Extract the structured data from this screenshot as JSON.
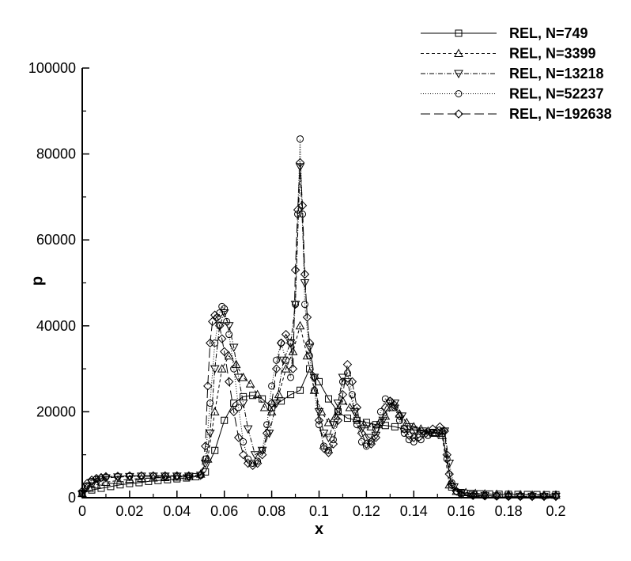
{
  "chart_data": {
    "type": "line",
    "xlabel": "x",
    "ylabel": "p",
    "xlim": [
      0,
      0.2
    ],
    "ylim": [
      0,
      100000
    ],
    "xticks": [
      "0",
      "0.02",
      "0.04",
      "0.06",
      "0.08",
      "0.1",
      "0.12",
      "0.14",
      "0.16",
      "0.18",
      "0.2"
    ],
    "yticks": [
      "0",
      "20000",
      "40000",
      "60000",
      "80000",
      "100000"
    ],
    "grid": false,
    "legend_position": "top-right",
    "series": [
      {
        "name": "REL, N=749",
        "marker": "square",
        "dash": "solid",
        "x": [
          0.0,
          0.004,
          0.008,
          0.012,
          0.016,
          0.02,
          0.024,
          0.028,
          0.032,
          0.036,
          0.04,
          0.044,
          0.048,
          0.052,
          0.056,
          0.06,
          0.064,
          0.068,
          0.072,
          0.076,
          0.08,
          0.084,
          0.088,
          0.092,
          0.096,
          0.1,
          0.104,
          0.108,
          0.112,
          0.116,
          0.12,
          0.124,
          0.128,
          0.132,
          0.136,
          0.14,
          0.144,
          0.148,
          0.152,
          0.156,
          0.16,
          0.164,
          0.168,
          0.172,
          0.176,
          0.18,
          0.184,
          0.188,
          0.192,
          0.196,
          0.2
        ],
        "y": [
          1000,
          1800,
          2200,
          2600,
          3000,
          3300,
          3500,
          3800,
          4000,
          4200,
          4400,
          4600,
          4900,
          6000,
          11000,
          18000,
          22000,
          23500,
          23800,
          23000,
          21000,
          22500,
          24000,
          25000,
          30000,
          27000,
          23000,
          20000,
          18500,
          18000,
          17500,
          17000,
          16800,
          16500,
          16000,
          15800,
          15500,
          15200,
          15000,
          2500,
          1200,
          1000,
          900,
          850,
          800,
          780,
          760,
          740,
          720,
          700,
          700
        ]
      },
      {
        "name": "REL, N=3399",
        "marker": "triangle-up",
        "dash": "dashed",
        "x": [
          0.0,
          0.003,
          0.006,
          0.01,
          0.015,
          0.02,
          0.025,
          0.03,
          0.035,
          0.04,
          0.045,
          0.05,
          0.053,
          0.056,
          0.059,
          0.062,
          0.065,
          0.068,
          0.071,
          0.074,
          0.077,
          0.08,
          0.083,
          0.086,
          0.089,
          0.092,
          0.095,
          0.098,
          0.101,
          0.104,
          0.107,
          0.11,
          0.113,
          0.116,
          0.119,
          0.122,
          0.125,
          0.128,
          0.131,
          0.134,
          0.137,
          0.14,
          0.143,
          0.146,
          0.149,
          0.152,
          0.155,
          0.158,
          0.162,
          0.166,
          0.17,
          0.175,
          0.18,
          0.185,
          0.19,
          0.195,
          0.2
        ],
        "y": [
          1000,
          2200,
          3000,
          3600,
          4000,
          4300,
          4500,
          4600,
          4700,
          4800,
          4900,
          5500,
          9000,
          20000,
          30000,
          33000,
          31000,
          28000,
          26500,
          24000,
          21000,
          20000,
          24000,
          30000,
          34000,
          40000,
          33000,
          25000,
          20000,
          17500,
          19000,
          22500,
          21000,
          18500,
          17000,
          16500,
          17000,
          19000,
          21000,
          19500,
          17500,
          16500,
          16000,
          15500,
          15000,
          14500,
          3000,
          1500,
          1200,
          1000,
          900,
          800,
          750,
          700,
          650,
          600,
          600
        ]
      },
      {
        "name": "REL, N=13218",
        "marker": "triangle-down",
        "dash": "dashdot",
        "x": [
          0.0,
          0.002,
          0.004,
          0.007,
          0.01,
          0.015,
          0.02,
          0.025,
          0.03,
          0.035,
          0.04,
          0.045,
          0.05,
          0.052,
          0.054,
          0.056,
          0.058,
          0.06,
          0.062,
          0.064,
          0.066,
          0.068,
          0.07,
          0.073,
          0.076,
          0.079,
          0.082,
          0.085,
          0.088,
          0.09,
          0.092,
          0.094,
          0.096,
          0.098,
          0.1,
          0.102,
          0.104,
          0.106,
          0.108,
          0.11,
          0.112,
          0.115,
          0.118,
          0.121,
          0.124,
          0.127,
          0.13,
          0.132,
          0.135,
          0.138,
          0.141,
          0.144,
          0.147,
          0.15,
          0.153,
          0.155,
          0.157,
          0.16,
          0.165,
          0.17,
          0.175,
          0.18,
          0.185,
          0.19,
          0.195,
          0.2
        ],
        "y": [
          800,
          2500,
          3500,
          4200,
          4600,
          4800,
          4900,
          5000,
          5000,
          5000,
          5000,
          5000,
          5200,
          8000,
          15000,
          30000,
          40000,
          43000,
          40000,
          35000,
          28000,
          22000,
          16000,
          10000,
          11000,
          15000,
          22000,
          32000,
          36000,
          45000,
          77000,
          50000,
          35000,
          28000,
          20000,
          15000,
          14000,
          17000,
          22000,
          28000,
          27000,
          20000,
          16000,
          14000,
          14500,
          18000,
          22000,
          22000,
          19000,
          16500,
          15500,
          15000,
          15000,
          15000,
          15500,
          8000,
          2500,
          1000,
          700,
          500,
          400,
          350,
          300,
          300,
          300,
          300
        ]
      },
      {
        "name": "REL, N=52237",
        "marker": "circle",
        "dash": "dotted",
        "x": [
          0.0,
          0.002,
          0.004,
          0.006,
          0.008,
          0.01,
          0.015,
          0.02,
          0.025,
          0.03,
          0.035,
          0.04,
          0.045,
          0.05,
          0.052,
          0.054,
          0.056,
          0.058,
          0.059,
          0.06,
          0.061,
          0.062,
          0.064,
          0.066,
          0.068,
          0.07,
          0.072,
          0.074,
          0.076,
          0.078,
          0.08,
          0.082,
          0.084,
          0.086,
          0.088,
          0.09,
          0.091,
          0.092,
          0.093,
          0.094,
          0.096,
          0.098,
          0.1,
          0.102,
          0.104,
          0.106,
          0.108,
          0.11,
          0.112,
          0.114,
          0.116,
          0.118,
          0.12,
          0.122,
          0.124,
          0.126,
          0.128,
          0.13,
          0.132,
          0.134,
          0.136,
          0.138,
          0.14,
          0.143,
          0.146,
          0.149,
          0.152,
          0.154,
          0.156,
          0.158,
          0.16,
          0.165,
          0.17,
          0.175,
          0.18,
          0.185,
          0.19,
          0.195,
          0.2
        ],
        "y": [
          1000,
          2800,
          3800,
          4300,
          4600,
          4800,
          4900,
          5000,
          5000,
          5000,
          5000,
          5000,
          5000,
          5200,
          9000,
          22000,
          36000,
          43000,
          44500,
          44000,
          41000,
          38000,
          30000,
          21000,
          13000,
          9000,
          8000,
          8500,
          11000,
          17000,
          26000,
          32000,
          36000,
          32000,
          28000,
          45000,
          66000,
          83500,
          66000,
          45000,
          33000,
          25000,
          17000,
          12000,
          11000,
          13500,
          20000,
          27000,
          29000,
          24000,
          17000,
          13000,
          12000,
          13000,
          16000,
          20000,
          23000,
          22500,
          21000,
          18000,
          15000,
          13500,
          13000,
          13500,
          14500,
          15000,
          15500,
          9000,
          3500,
          1500,
          800,
          500,
          400,
          350,
          300,
          300,
          300,
          300,
          300
        ]
      },
      {
        "name": "REL, N=192638",
        "marker": "diamond",
        "dash": "longdash",
        "x": [
          0.0,
          0.002,
          0.004,
          0.006,
          0.008,
          0.01,
          0.015,
          0.02,
          0.025,
          0.03,
          0.035,
          0.04,
          0.045,
          0.05,
          0.052,
          0.053,
          0.054,
          0.055,
          0.056,
          0.057,
          0.058,
          0.059,
          0.06,
          0.062,
          0.064,
          0.066,
          0.068,
          0.07,
          0.072,
          0.074,
          0.076,
          0.078,
          0.08,
          0.082,
          0.084,
          0.086,
          0.088,
          0.089,
          0.09,
          0.091,
          0.092,
          0.093,
          0.094,
          0.095,
          0.096,
          0.098,
          0.1,
          0.102,
          0.104,
          0.106,
          0.108,
          0.11,
          0.112,
          0.114,
          0.116,
          0.118,
          0.12,
          0.122,
          0.124,
          0.126,
          0.128,
          0.13,
          0.132,
          0.134,
          0.136,
          0.138,
          0.14,
          0.142,
          0.145,
          0.148,
          0.151,
          0.153,
          0.154,
          0.155,
          0.156,
          0.158,
          0.16,
          0.165,
          0.17,
          0.175,
          0.18,
          0.185,
          0.19,
          0.195,
          0.2
        ],
        "y": [
          1500,
          3300,
          4100,
          4500,
          4700,
          4900,
          5000,
          5100,
          5100,
          5100,
          5100,
          5100,
          5100,
          5300,
          12000,
          26000,
          36000,
          41000,
          42500,
          42000,
          40000,
          37000,
          34000,
          27000,
          20000,
          14000,
          10000,
          8000,
          7500,
          8000,
          10000,
          15000,
          22000,
          30000,
          36000,
          38000,
          36000,
          30000,
          53000,
          67000,
          78000,
          68000,
          52000,
          42000,
          36000,
          28000,
          18000,
          11500,
          10500,
          12500,
          18000,
          24000,
          31000,
          27000,
          21000,
          15000,
          12500,
          12500,
          14000,
          17500,
          21000,
          22500,
          21500,
          19000,
          16000,
          14500,
          14000,
          14000,
          15000,
          16000,
          16500,
          15500,
          10000,
          5500,
          3000,
          1500,
          800,
          500,
          400,
          350,
          300,
          300,
          300,
          300,
          300
        ]
      }
    ]
  }
}
